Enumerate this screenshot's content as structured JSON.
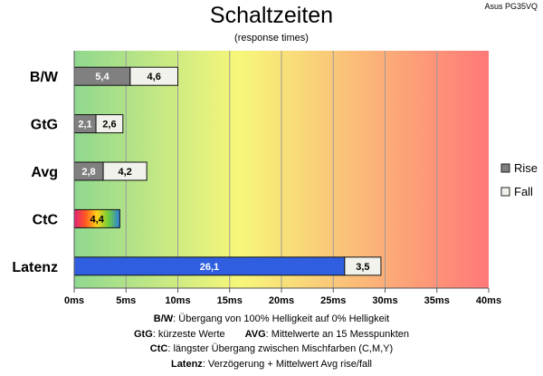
{
  "header": {
    "title": "Schaltzeiten",
    "subtitle": "(response times)",
    "model": "Asus PG35VQ"
  },
  "chart_data": {
    "type": "bar",
    "orientation": "horizontal",
    "stacked": true,
    "categories": [
      "B/W",
      "GtG",
      "Avg",
      "CtC",
      "Latenz"
    ],
    "series": [
      {
        "name": "Rise",
        "values": [
          5.4,
          2.1,
          2.8,
          null,
          26.1
        ],
        "labels": [
          "5,4",
          "2,1",
          "2,8",
          "",
          "26,1"
        ]
      },
      {
        "name": "Fall",
        "values": [
          4.6,
          2.6,
          4.2,
          null,
          3.5
        ],
        "labels": [
          "4,6",
          "2,6",
          "4,2",
          "",
          "3,5"
        ]
      }
    ],
    "extra_bars": [
      {
        "category": "CtC",
        "value": 4.4,
        "label": "4,4",
        "style": "rainbow"
      }
    ],
    "xlim": [
      0,
      40
    ],
    "xticks": [
      0,
      5,
      10,
      15,
      20,
      25,
      30,
      35,
      40
    ],
    "xtick_labels": [
      "0ms",
      "5ms",
      "10ms",
      "15ms",
      "20ms",
      "25ms",
      "30ms",
      "35ms",
      "40ms"
    ],
    "grid": true,
    "legend": "right",
    "colors": {
      "rise": "#808080",
      "fall": "#f2f2ec",
      "latency_rise": "#2f5fe0",
      "bg_start": "#8fd88f",
      "bg_mid": "#f7f779",
      "bg_end": "#ff7878"
    }
  },
  "notes": {
    "bw_key": "B/W",
    "bw_text": ":  Übergang von 100% Helligkeit auf 0% Helligkeit",
    "gtg_key": "GtG",
    "gtg_text": ": kürzeste  Werte",
    "avg_key": "AVG",
    "avg_text": ": Mittelwerte  an 15 Messpunkten",
    "ctc_key": "CtC",
    "ctc_text": ": längster Übergang  zwischen Mischfarben  (C,M,Y)",
    "lat_key": "Latenz",
    "lat_text": ": Verzögerung  + Mittelwert Avg rise/fall"
  }
}
